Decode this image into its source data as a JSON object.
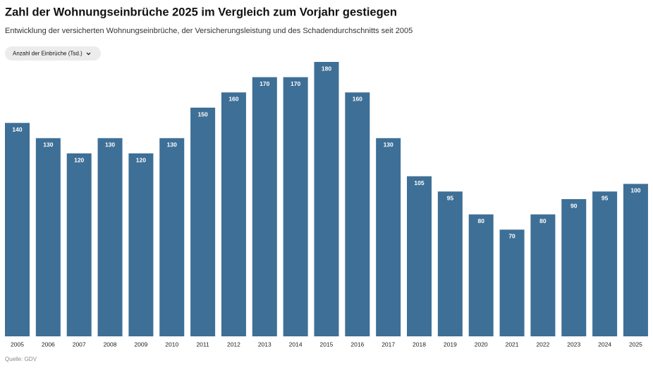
{
  "chart_data": {
    "type": "bar",
    "title": "Zahl der Wohnungseinbrüche 2025 im Vergleich zum Vorjahr gestiegen",
    "subtitle": "Entwicklung der versicherten Wohnungseinbrüche, der Versicherungsleistung und des Schadendurchschnitts seit 2005",
    "selector": "Anzahl der Einbrüche (Tsd.)",
    "source": "Quelle: GDV",
    "categories": [
      "2005",
      "2006",
      "2007",
      "2008",
      "2009",
      "2010",
      "2011",
      "2012",
      "2013",
      "2014",
      "2015",
      "2016",
      "2017",
      "2018",
      "2019",
      "2020",
      "2021",
      "2022",
      "2023",
      "2024",
      "2025"
    ],
    "values": [
      140,
      130,
      120,
      130,
      120,
      130,
      150,
      160,
      170,
      170,
      180,
      160,
      130,
      105,
      95,
      80,
      70,
      80,
      90,
      95,
      100
    ],
    "color": "#3e6f96"
  }
}
